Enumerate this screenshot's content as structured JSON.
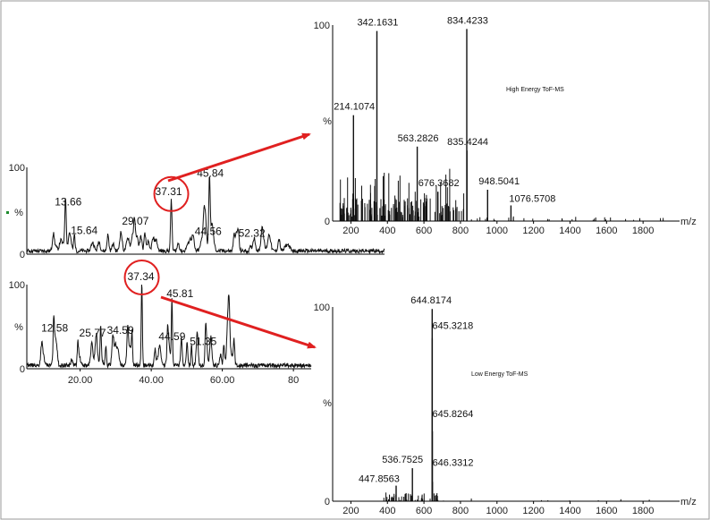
{
  "chart_data": [
    {
      "id": "tic_top",
      "type": "line",
      "title": "",
      "xlabel": "",
      "ylabel": "%",
      "xlim": [
        5,
        85
      ],
      "ylim": [
        0,
        100
      ],
      "yticks": [
        "0",
        "100"
      ],
      "labelled_peaks": [
        {
          "x": 13.66,
          "y": 52,
          "label": "13.66"
        },
        {
          "x": 15.64,
          "y": 19,
          "label": "15.64"
        },
        {
          "x": 29.07,
          "y": 30,
          "label": "29.07"
        },
        {
          "x": 37.31,
          "y": 60,
          "label": "37.31"
        },
        {
          "x": 44.56,
          "y": 18,
          "label": "44.56"
        },
        {
          "x": 45.84,
          "y": 83,
          "label": "45.84"
        },
        {
          "x": 52.32,
          "y": 16,
          "label": "52.32"
        }
      ],
      "highlight": {
        "x": 37.31,
        "marker": "circle",
        "color": "#e02020"
      }
    },
    {
      "id": "tic_bottom",
      "type": "line",
      "title": "",
      "xlabel": "",
      "ylabel": "%",
      "xlim": [
        5,
        85
      ],
      "ylim": [
        0,
        100
      ],
      "yticks": [
        "0",
        "100"
      ],
      "xticks": [
        "20.00",
        "40.00",
        "60.00",
        "80"
      ],
      "labelled_peaks": [
        {
          "x": 12.58,
          "y": 40,
          "label": "12.58"
        },
        {
          "x": 25.77,
          "y": 34,
          "label": "25.77"
        },
        {
          "x": 34.59,
          "y": 37,
          "label": "34.59"
        },
        {
          "x": 37.34,
          "y": 99,
          "label": "37.34"
        },
        {
          "x": 44.59,
          "y": 30,
          "label": "44.59"
        },
        {
          "x": 45.81,
          "y": 81,
          "label": "45.81"
        },
        {
          "x": 51.35,
          "y": 24,
          "label": "51.35"
        }
      ],
      "highlight": {
        "x": 37.34,
        "marker": "circle",
        "color": "#e02020"
      }
    },
    {
      "id": "ms_high",
      "type": "bar",
      "title": "High Energy ToF-MS",
      "xlabel": "m/z",
      "ylabel": "%",
      "xlim": [
        100,
        2000
      ],
      "ylim": [
        0,
        100
      ],
      "yticks": [
        "0",
        "100"
      ],
      "xticks": [
        "200",
        "400",
        "600",
        "800",
        "1000",
        "1200",
        "1400",
        "1600",
        "1800"
      ],
      "labelled_peaks": [
        {
          "x": 214.1074,
          "y": 54,
          "label": "214.1074"
        },
        {
          "x": 342.1631,
          "y": 97,
          "label": "342.1631"
        },
        {
          "x": 563.2826,
          "y": 38,
          "label": "563.2826"
        },
        {
          "x": 676.3682,
          "y": 15,
          "label": "676.3682"
        },
        {
          "x": 834.4233,
          "y": 98,
          "label": "834.4233"
        },
        {
          "x": 835.4244,
          "y": 36,
          "label": "835.4244"
        },
        {
          "x": 948.5041,
          "y": 16,
          "label": "948.5041"
        },
        {
          "x": 1076.5708,
          "y": 8,
          "label": "1076.5708"
        }
      ]
    },
    {
      "id": "ms_low",
      "type": "bar",
      "title": "Low Energy ToF-MS",
      "xlabel": "m/z",
      "ylabel": "%",
      "xlim": [
        100,
        2000
      ],
      "ylim": [
        0,
        100
      ],
      "yticks": [
        "0",
        "100"
      ],
      "xticks": [
        "200",
        "400",
        "600",
        "800",
        "1000",
        "1200",
        "1400",
        "1600",
        "1800"
      ],
      "labelled_peaks": [
        {
          "x": 447.8563,
          "y": 8,
          "label": "447.8563"
        },
        {
          "x": 536.7525,
          "y": 17,
          "label": "536.7525"
        },
        {
          "x": 644.8174,
          "y": 99,
          "label": "644.8174"
        },
        {
          "x": 645.3218,
          "y": 84,
          "label": "645.3218"
        },
        {
          "x": 645.8264,
          "y": 36,
          "label": "645.8264"
        },
        {
          "x": 646.3312,
          "y": 10,
          "label": "646.3312"
        }
      ]
    }
  ],
  "colors": {
    "trace": "#111111",
    "highlight": "#e02020",
    "axis": "#000000",
    "text": "#111111",
    "frame": "#9a9a9a"
  }
}
